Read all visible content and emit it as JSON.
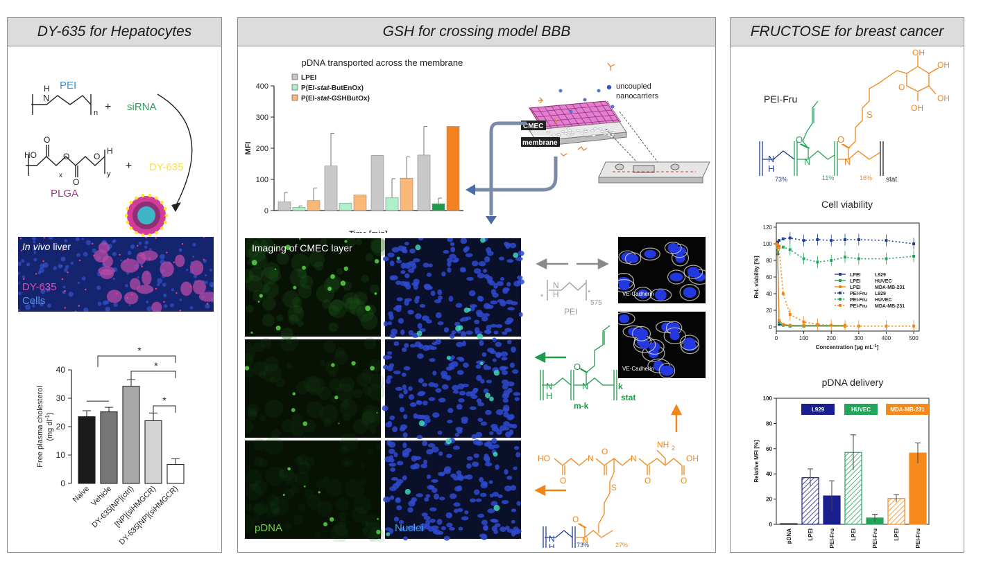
{
  "colors": {
    "blue": "#1f3f8f",
    "green": "#1e9a4a",
    "orange": "#f08519",
    "grey": "#9a9a9a",
    "magenta": "#d0358f",
    "pink": "#9a3b7a"
  },
  "panel1": {
    "title": "DY-635 for Hepatocytes",
    "scheme": {
      "pei": "PEI",
      "sirna": "siRNA",
      "dye": "DY-635",
      "plga": "PLGA",
      "plus": "+",
      "n": "n",
      "x": "x",
      "y": "y",
      "nh": "N",
      "h": "H",
      "ho": "HO",
      "o": "O"
    },
    "liver": {
      "title_italic": "In vivo",
      "title_rest": "liver",
      "dye": "DY-635",
      "cells": "Cells"
    }
  },
  "panel2": {
    "title": "GSH for crossing model BBB",
    "imaging_title": "Imaging of CMEC layer",
    "pdna_label": "pDNA",
    "nuclei_label": "Nuclei",
    "cmec": "CMEC",
    "membrane": "membrane",
    "uncoupled": "uncoupled",
    "nanocarriers": "nanocarriers",
    "vecadherin": "VE-Cadherin",
    "pei": "PEI",
    "pei_sub": "575",
    "stat": "stat",
    "mk": "m-k",
    "k": "k",
    "pct73": "73%",
    "pct27": "27%",
    "n": "N",
    "h": "H",
    "nh2": "NH",
    "two": "2",
    "oh": "OH",
    "ho": "HO",
    "o": "O",
    "s": "S",
    "star": "*"
  },
  "panel3": {
    "title": "FRUCTOSE for breast cancer",
    "pei_fru": "PEI-Fru",
    "pct73": "73%",
    "pct11": "11%",
    "pct16": "16%",
    "stat": "stat",
    "n": "N",
    "h": "H",
    "o": "O",
    "oh": "OH",
    "s": "S"
  },
  "chart_data": [
    {
      "id": "cholesterol",
      "type": "bar",
      "categories": [
        "Naive",
        "Vehicle",
        "DY-635[NP](ctrl)",
        "[NP](siHMGCR)",
        "DY-635[NP](siHMGCR)"
      ],
      "values": [
        23.5,
        25.2,
        34.2,
        22.1,
        6.7
      ],
      "errors": [
        2.1,
        1.6,
        2.3,
        2.7,
        2.0
      ],
      "bar_colors": [
        "#1a1a1a",
        "#777777",
        "#a8a8a8",
        "#d4d4d4",
        "#ffffff"
      ],
      "ylabel": "Free plasma cholesterol",
      "ylabel_unit": "(mg dl",
      "ylabel_unit_sup": "-1",
      "ylabel_unit_close": ")",
      "ylim": [
        0,
        40
      ],
      "yticks": [
        0,
        10,
        20,
        30,
        40
      ],
      "significance": "*"
    },
    {
      "id": "pdna_transport",
      "type": "bar",
      "title": "pDNA transported across the membrane",
      "xlabel": "Time [min]",
      "ylabel": "MFI",
      "ylim": [
        0,
        400
      ],
      "yticks": [
        0,
        100,
        200,
        300,
        400
      ],
      "legend_position": "top-left",
      "series": [
        {
          "name": "LPEI",
          "color": "#c8c8c8",
          "values": [
            28,
            143,
            177,
            178
          ],
          "errors": [
            30,
            105,
            0,
            92
          ]
        },
        {
          "name": "P(EI-stat-ButEnOx)",
          "color": "#aef0c8",
          "values": [
            10,
            24,
            42,
            22
          ],
          "errors": [
            5,
            0,
            60,
            18
          ]
        },
        {
          "name": "P(EI-stat-GSHButOx)",
          "color": "#fab878",
          "values": [
            32,
            50,
            104,
            270
          ],
          "errors": [
            40,
            0,
            68,
            0
          ]
        }
      ],
      "name_parts": [
        [
          "LPEI"
        ],
        [
          "P(EI-",
          "stat",
          "-ButEnOx)"
        ],
        [
          "P(EI-",
          "stat",
          "-GSHButOx)"
        ]
      ],
      "last_color": "#f58220",
      "last_green": "#1e9a4a"
    },
    {
      "id": "cell_viability",
      "type": "line",
      "title": "Cell viability",
      "xlabel": "Concentration [µg mL",
      "xlabel_sup": "-1",
      "xlabel_close": "]",
      "ylabel": "Rel. viability [%]",
      "xlim": [
        0,
        520
      ],
      "ylim": [
        -5,
        125
      ],
      "xticks": [
        0,
        100,
        200,
        300,
        400,
        500
      ],
      "yticks": [
        0,
        20,
        40,
        60,
        80,
        100,
        120
      ],
      "legend_position": "center-right",
      "series": [
        {
          "name": "LPEI",
          "cell": "L929",
          "color": "#1f3f8f",
          "dash": "solid",
          "x": [
            0,
            5,
            10,
            25,
            50,
            100,
            250
          ],
          "y": [
            100,
            88,
            3,
            2,
            1,
            1,
            1
          ]
        },
        {
          "name": "LPEI",
          "cell": "HUVEC",
          "color": "#27a55a",
          "dash": "solid",
          "x": [
            0,
            5,
            10,
            25,
            50,
            100,
            250
          ],
          "y": [
            100,
            90,
            5,
            2,
            1,
            1,
            1
          ]
        },
        {
          "name": "LPEI",
          "cell": "MDA-MB-231",
          "color": "#f08519",
          "dash": "solid",
          "x": [
            0,
            5,
            10,
            25,
            50,
            100,
            250
          ],
          "y": [
            100,
            95,
            8,
            3,
            2,
            2,
            2
          ]
        },
        {
          "name": "PEI-Fru",
          "cell": "L929",
          "color": "#1f3f8f",
          "dash": "dot",
          "x": [
            0,
            5,
            10,
            25,
            50,
            100,
            150,
            200,
            250,
            300,
            400,
            500
          ],
          "y": [
            100,
            102,
            104,
            106,
            107,
            104,
            105,
            104,
            105,
            105,
            104,
            100
          ]
        },
        {
          "name": "PEI-Fru",
          "cell": "HUVEC",
          "color": "#27a55a",
          "dash": "dot",
          "x": [
            0,
            5,
            10,
            25,
            50,
            100,
            150,
            200,
            250,
            300,
            400,
            500
          ],
          "y": [
            100,
            98,
            97,
            96,
            93,
            82,
            78,
            80,
            84,
            82,
            82,
            85
          ]
        },
        {
          "name": "PEI-Fru",
          "cell": "MDA-MB-231",
          "color": "#f08519",
          "dash": "dot",
          "x": [
            0,
            5,
            10,
            25,
            50,
            100,
            150,
            200,
            250,
            300,
            400,
            500
          ],
          "y": [
            100,
            99,
            95,
            40,
            15,
            6,
            3,
            2,
            1,
            1,
            1,
            1
          ]
        }
      ]
    },
    {
      "id": "pdna_delivery",
      "type": "bar",
      "title": "pDNA delivery",
      "ylabel": "Relative MFI [%]",
      "ylim": [
        0,
        100
      ],
      "yticks": [
        0,
        20,
        40,
        60,
        80,
        100
      ],
      "categories": [
        "pDNA",
        "LPEI",
        "PEI-Fru",
        "LPEI",
        "PEI-Fru",
        "LPEI",
        "PEI-Fru"
      ],
      "values": [
        0.5,
        37,
        22.5,
        57,
        5,
        20.5,
        56.5
      ],
      "errors": [
        0,
        7,
        12,
        14,
        3,
        3,
        8
      ],
      "fills": [
        "none",
        "hatch-blue",
        "blue",
        "hatch-green",
        "green",
        "hatch-orange",
        "orange"
      ],
      "legend": [
        {
          "label": "L929",
          "color": "#1a1f8f"
        },
        {
          "label": "HUVEC",
          "color": "#22a55a"
        },
        {
          "label": "MDA-MB-231",
          "color": "#f58a1a"
        }
      ]
    }
  ]
}
